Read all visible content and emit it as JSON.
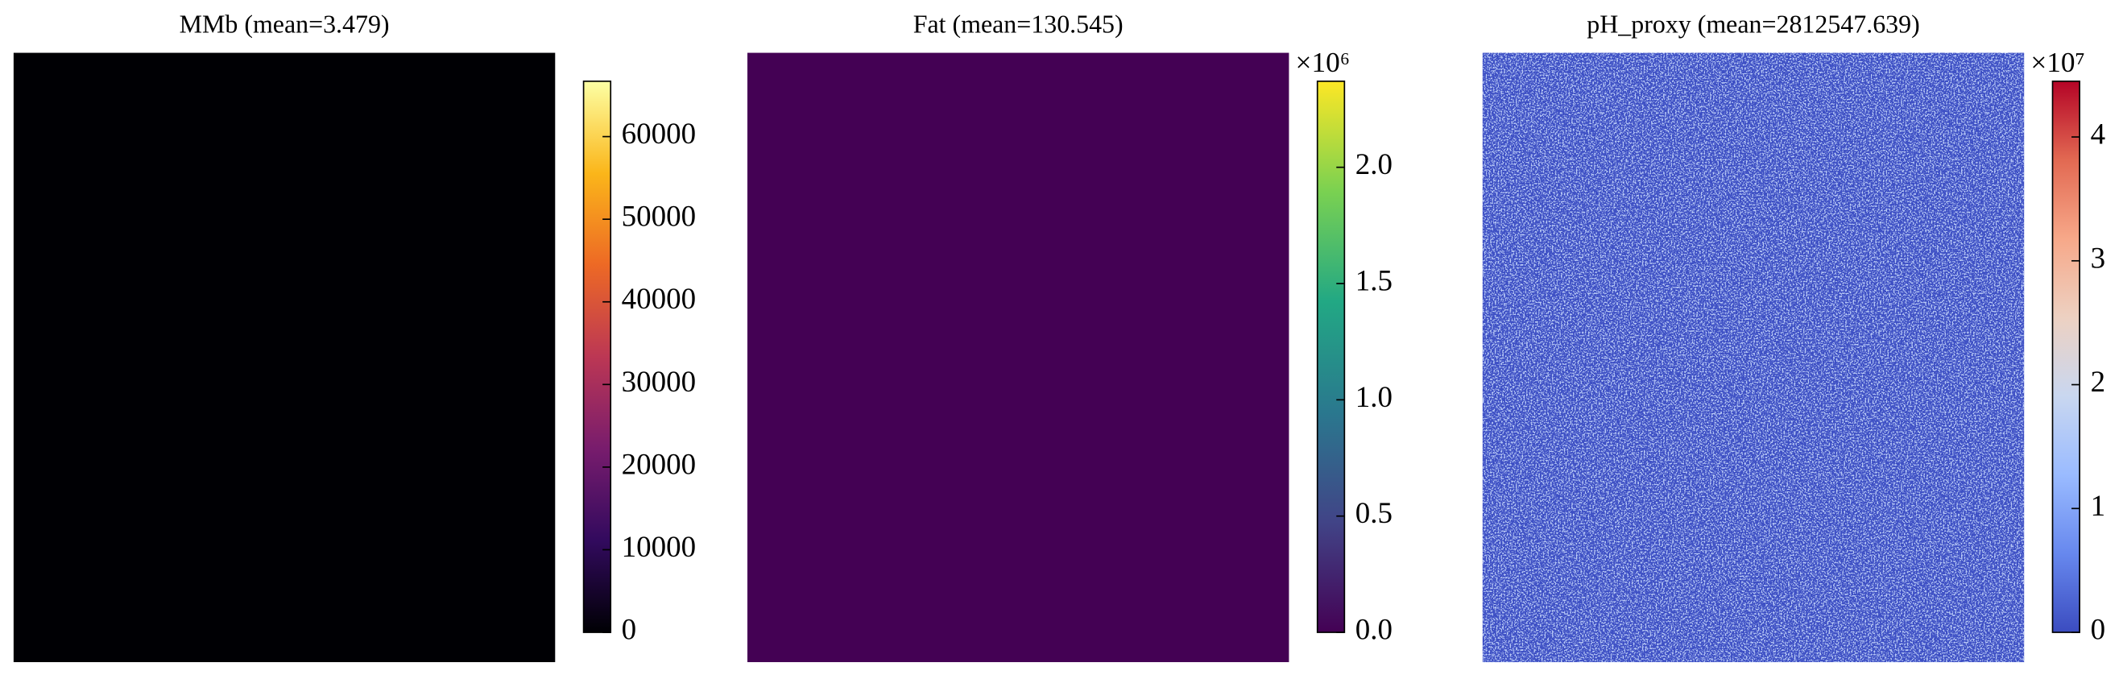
{
  "chart_data": [
    {
      "type": "heatmap",
      "title": "MMb (mean=3.479)",
      "fill": "#000004",
      "colors": [
        "#000004",
        "#320a5e",
        "#781c6d",
        "#bc3754",
        "#ed6925",
        "#fbb61a",
        "#fcffa4"
      ],
      "ylim": [
        0,
        66700
      ],
      "yticks": [
        0,
        10000,
        20000,
        30000,
        40000,
        50000,
        60000
      ]
    },
    {
      "type": "heatmap",
      "title": "Fat (mean=130.545)",
      "fill": "#440154",
      "offset_label": "×10⁶",
      "colors": [
        "#440154",
        "#414487",
        "#2a788e",
        "#22a884",
        "#7ad151",
        "#fde725"
      ],
      "ylim": [
        0,
        2.37
      ],
      "yticks": [
        {
          "value": 0,
          "label": "0.0"
        },
        0.5,
        {
          "value": 1,
          "label": "1.0"
        },
        1.5,
        {
          "value": 2,
          "label": "2.0"
        }
      ]
    },
    {
      "type": "heatmap",
      "title": "pH_proxy (mean=2812547.639)",
      "fill": "#3d4fc4",
      "offset_label": "×10⁷",
      "colors": [
        "#3b4cc0",
        "#6788ee",
        "#9abbff",
        "#c9d7f0",
        "#edd1c2",
        "#f7a889",
        "#e26952",
        "#b40426"
      ],
      "ylim": [
        0,
        4.45
      ],
      "yticks": [
        0,
        1,
        2,
        3,
        4
      ]
    }
  ]
}
